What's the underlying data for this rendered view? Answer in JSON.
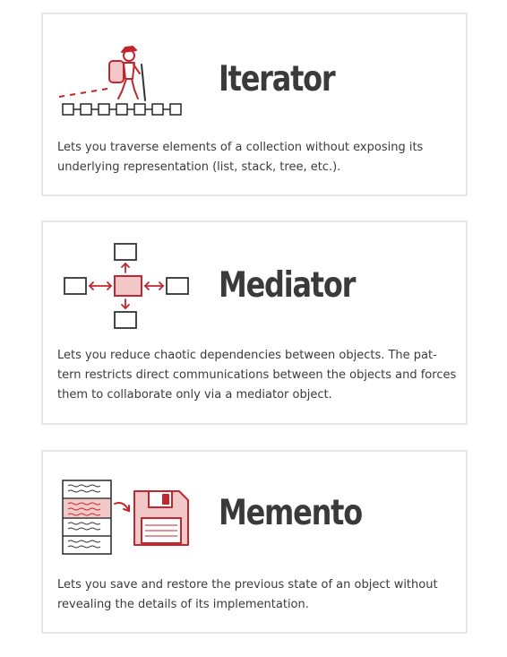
{
  "accent_color": "#c1272d",
  "patterns": [
    {
      "title": "Iterator",
      "description": "Lets you traverse elements of a collection without exposing its underlying representation (list, stack, tree, etc.).",
      "icon": "hiker-walking-chain-icon"
    },
    {
      "title": "Mediator",
      "description": "Lets you reduce chaotic dependencies between objects. The pat-tern restricts direct communications between the objects and forces them to collaborate only via a mediator object.",
      "icon": "hub-with-four-boxes-icon"
    },
    {
      "title": "Memento",
      "description": "Lets you save and restore the previous state of an object without revealing the details of its implementation.",
      "icon": "document-to-floppy-disk-icon"
    }
  ]
}
